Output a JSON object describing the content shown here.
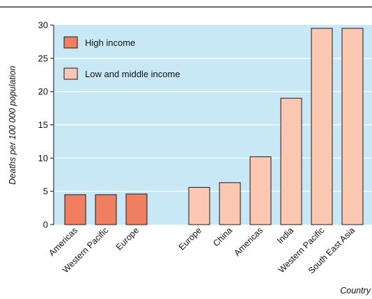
{
  "chart_data": {
    "type": "bar",
    "ylabel": "Deaths per 100 000 population",
    "xlabel": "Country",
    "ylim": [
      0,
      30
    ],
    "yticks": [
      0,
      5,
      10,
      15,
      20,
      25,
      30
    ],
    "grid": "horizontal",
    "legend_position": "top-left",
    "colors": {
      "plot_background": "#c9e8f6",
      "grid": "#ffffff",
      "high": "#f07f62",
      "low": "#fbc7b0",
      "outline": "#1a1a1a"
    },
    "series": [
      {
        "name": "High income",
        "color": "#f07f62",
        "categories": [
          "Americas",
          "Western Pacific",
          "Europe"
        ],
        "values": [
          4.5,
          4.5,
          4.6
        ]
      },
      {
        "name": "Low and middle income",
        "color": "#fbc7b0",
        "categories": [
          "Europe",
          "China",
          "Americas",
          "India",
          "Western Pacific",
          "South East Asia"
        ],
        "values": [
          5.6,
          6.3,
          10.2,
          19.0,
          29.5,
          29.5
        ]
      }
    ]
  }
}
